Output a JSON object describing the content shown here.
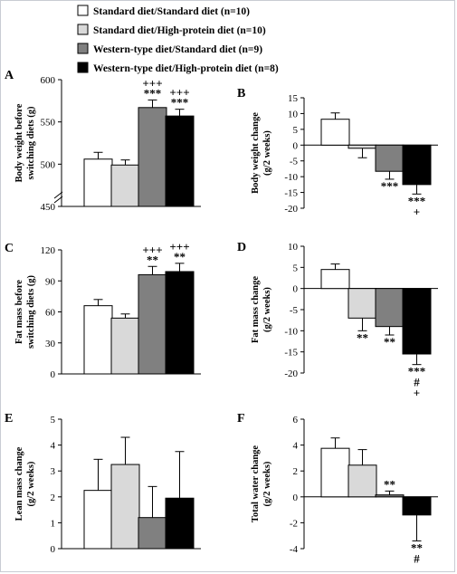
{
  "legend": {
    "entries": [
      {
        "label": "Standard diet/Standard diet (n=10)",
        "color": "#ffffff"
      },
      {
        "label": "Standard diet/High-protein diet (n=10)",
        "color": "#d9d9d9"
      },
      {
        "label": "Western-type diet/Standard diet (n=9)",
        "color": "#808080"
      },
      {
        "label": "Western-type diet/High-protein diet (n=8)",
        "color": "#000000"
      }
    ]
  },
  "chart_data": [
    {
      "panel": "A",
      "type": "bar",
      "ylabel": [
        "Body weight before",
        "switching diets (g)"
      ],
      "ylim": [
        450,
        600
      ],
      "yticks": [
        450,
        500,
        550,
        600
      ],
      "axis_break": true,
      "values": [
        506,
        499,
        567,
        557
      ],
      "errors": [
        8,
        6,
        9,
        8
      ],
      "annotations": [
        {
          "bar": 2,
          "lines": [
            "+++",
            "***"
          ]
        },
        {
          "bar": 3,
          "lines": [
            "+++",
            "***"
          ]
        }
      ]
    },
    {
      "panel": "B",
      "type": "bar",
      "ylabel": [
        "Body weight change",
        "(g/2 weeks)"
      ],
      "ylim": [
        -20,
        15
      ],
      "yticks": [
        -20,
        -15,
        -10,
        -5,
        0,
        5,
        10,
        15
      ],
      "values": [
        8.2,
        -1,
        -8.3,
        -12.5
      ],
      "errors": [
        2,
        3,
        2.5,
        3
      ],
      "annotations": [
        {
          "bar": 2,
          "lines": [
            "***"
          ]
        },
        {
          "bar": 3,
          "lines": [
            "***",
            "+"
          ]
        }
      ]
    },
    {
      "panel": "C",
      "type": "bar",
      "ylabel": [
        "Fat mass before",
        "switching diets (g)"
      ],
      "ylim": [
        0,
        120
      ],
      "yticks": [
        0,
        30,
        60,
        90,
        120
      ],
      "values": [
        66,
        54,
        96,
        99
      ],
      "errors": [
        6,
        4,
        8,
        8
      ],
      "annotations": [
        {
          "bar": 2,
          "lines": [
            "+++",
            "**"
          ]
        },
        {
          "bar": 3,
          "lines": [
            "+++",
            "**"
          ]
        }
      ]
    },
    {
      "panel": "D",
      "type": "bar",
      "ylabel": [
        "Fat mass change",
        "(g/2 weeks)"
      ],
      "ylim": [
        -20,
        10
      ],
      "yticks": [
        -20,
        -15,
        -10,
        -5,
        0,
        5,
        10
      ],
      "values": [
        4.5,
        -7,
        -9,
        -15.5
      ],
      "errors": [
        1.3,
        3,
        2,
        2.5
      ],
      "annotations": [
        {
          "bar": 1,
          "lines": [
            "**"
          ]
        },
        {
          "bar": 2,
          "lines": [
            "**"
          ]
        },
        {
          "bar": 3,
          "lines": [
            "***",
            "#",
            "+"
          ]
        }
      ]
    },
    {
      "panel": "E",
      "type": "bar",
      "ylabel": [
        "Lean mass change",
        "(g/2 weeks)"
      ],
      "ylim": [
        0,
        5
      ],
      "yticks": [
        0,
        1,
        2,
        3,
        4,
        5
      ],
      "values": [
        2.25,
        3.25,
        1.2,
        1.95
      ],
      "errors": [
        1.2,
        1.05,
        1.2,
        1.8
      ],
      "annotations": []
    },
    {
      "panel": "F",
      "type": "bar",
      "ylabel": [
        "Total water change",
        "(g/2 weeks)"
      ],
      "ylim": [
        -4,
        6
      ],
      "yticks": [
        -4,
        -2,
        0,
        2,
        4,
        6
      ],
      "values": [
        3.75,
        2.45,
        0.15,
        -1.4
      ],
      "errors": [
        0.8,
        1.2,
        0.3,
        2
      ],
      "annotations": [
        {
          "bar": 2,
          "lines": [
            "**"
          ]
        },
        {
          "bar": 3,
          "lines": [
            "**",
            "#"
          ]
        }
      ]
    }
  ]
}
